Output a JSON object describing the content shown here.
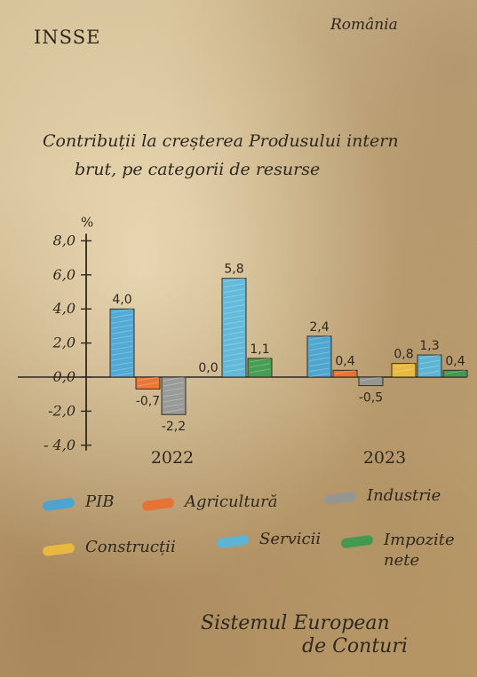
{
  "header": {
    "org": "INSSE",
    "country": "România"
  },
  "title": {
    "line1": "Contribuții la creșterea Produsului intern",
    "line2": "brut, pe categorii de resurse"
  },
  "footer": {
    "line1": "Sistemul European",
    "line2": "de Conturi"
  },
  "chart_data": {
    "type": "bar",
    "ylabel": "%",
    "ylim": [
      -4.0,
      8.0
    ],
    "yticks": [
      8.0,
      6.0,
      4.0,
      2.0,
      0.0,
      -2.0,
      -4.0
    ],
    "ytick_labels": [
      "8,0",
      "6,0",
      "4,0",
      "2,0",
      "0,0",
      "-2,0",
      "- 4,0"
    ],
    "groups": [
      "2022",
      "2023"
    ],
    "series": [
      {
        "name": "PIB",
        "color": "#3aa6df",
        "values": [
          4.0,
          2.4
        ],
        "labels": [
          "4,0",
          "2,4"
        ]
      },
      {
        "name": "Agricultură",
        "color": "#ee6a2a",
        "values": [
          -0.7,
          0.4
        ],
        "labels": [
          "-0,7",
          "0,4"
        ]
      },
      {
        "name": "Industrie",
        "color": "#8f959a",
        "values": [
          -2.2,
          -0.5
        ],
        "labels": [
          "-2,2",
          "-0,5"
        ]
      },
      {
        "name": "Construcții",
        "color": "#f2c03a",
        "values": [
          0.0,
          0.8
        ],
        "labels": [
          "0,0",
          "0,8"
        ]
      },
      {
        "name": "Servicii",
        "color": "#4fb8e6",
        "values": [
          5.8,
          1.3
        ],
        "labels": [
          "5,8",
          "1,3"
        ]
      },
      {
        "name": "Impozite nete",
        "color": "#2e9a4b",
        "values": [
          1.1,
          0.4
        ],
        "labels": [
          "1,1",
          "0,4"
        ]
      }
    ]
  }
}
